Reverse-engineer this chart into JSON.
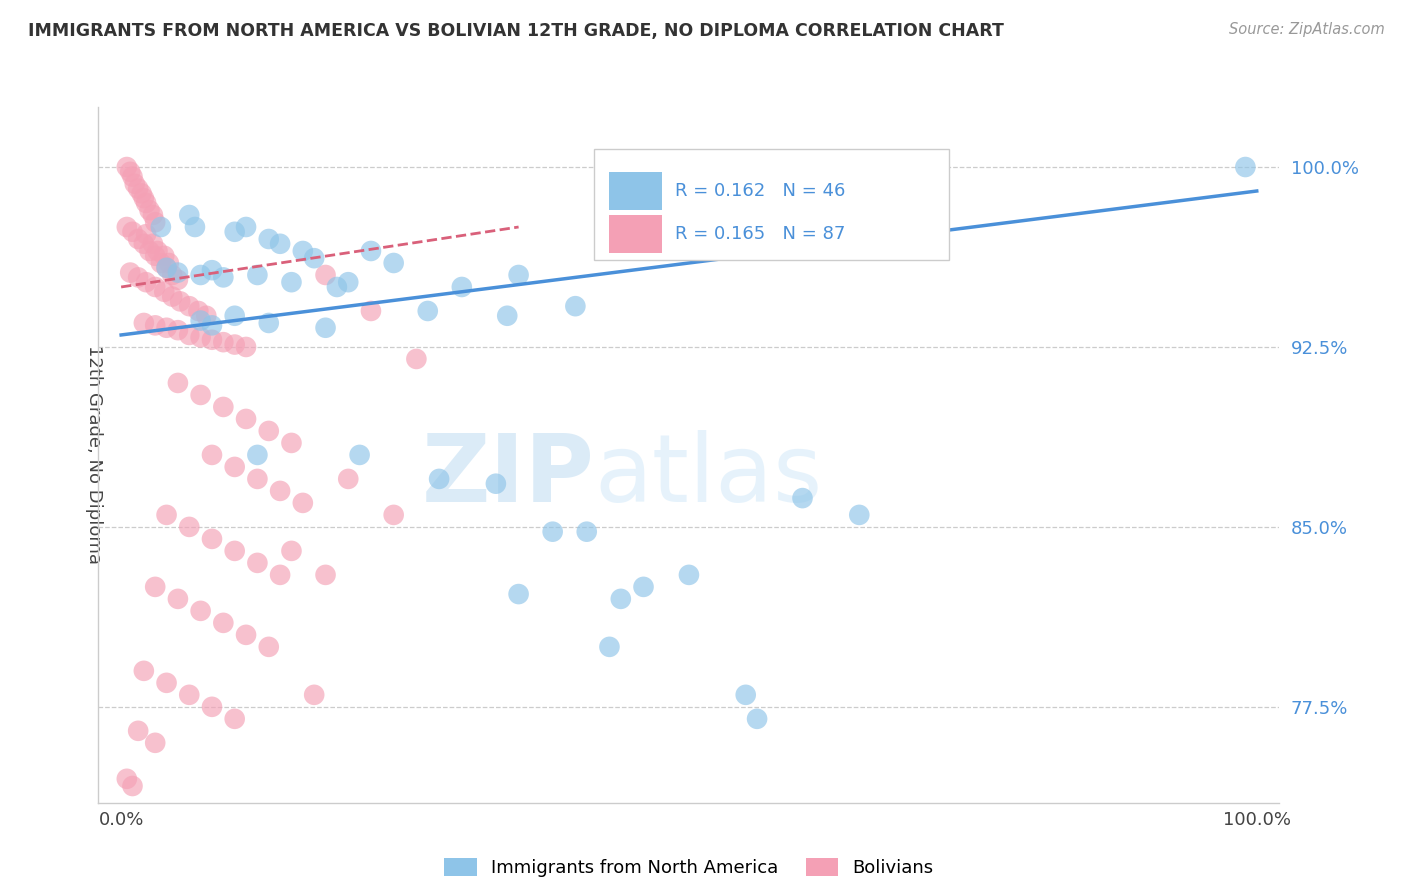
{
  "title": "IMMIGRANTS FROM NORTH AMERICA VS BOLIVIAN 12TH GRADE, NO DIPLOMA CORRELATION CHART",
  "source": "Source: ZipAtlas.com",
  "ylabel": "12th Grade, No Diploma",
  "xlim": [
    -0.02,
    1.02
  ],
  "ylim": [
    0.735,
    1.025
  ],
  "yticks": [
    0.775,
    0.85,
    0.925,
    1.0
  ],
  "ytick_labels": [
    "77.5%",
    "85.0%",
    "92.5%",
    "100.0%"
  ],
  "xticks": [
    0.0,
    1.0
  ],
  "xtick_labels": [
    "0.0%",
    "100.0%"
  ],
  "background_color": "#ffffff",
  "blue_color": "#8ec4e8",
  "pink_color": "#f4a0b5",
  "trend_blue": "#4a90d9",
  "trend_pink": "#d9607a",
  "legend_r_blue": "0.162",
  "legend_n_blue": "46",
  "legend_r_pink": "0.165",
  "legend_n_pink": "87",
  "watermark_zip": "ZIP",
  "watermark_atlas": "atlas",
  "blue_trend_x0": 0.0,
  "blue_trend_y0": 0.93,
  "blue_trend_x1": 1.0,
  "blue_trend_y1": 0.99,
  "pink_trend_x0": 0.0,
  "pink_trend_y0": 0.95,
  "pink_trend_x1": 0.35,
  "pink_trend_y1": 0.975,
  "grid_color": "#cccccc",
  "grid_linestyle": "--",
  "spine_color": "#cccccc"
}
